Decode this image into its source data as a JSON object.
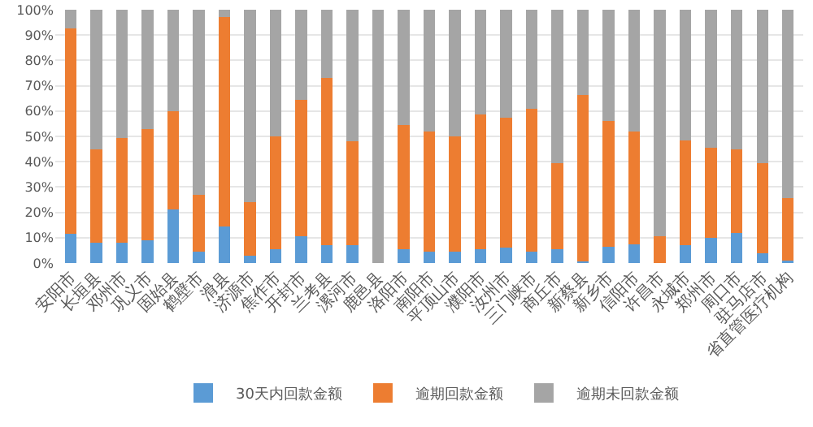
{
  "chart_data": {
    "type": "bar",
    "stacked": true,
    "categories": [
      "安阳市",
      "长垣县",
      "邓州市",
      "巩义市",
      "固始县",
      "鹤壁市",
      "滑县",
      "济源市",
      "焦作市",
      "开封市",
      "兰考县",
      "漯河市",
      "鹿邑县",
      "洛阳市",
      "南阳市",
      "平顶山市",
      "濮阳市",
      "汝州市",
      "三门峡市",
      "商丘市",
      "新蔡县",
      "新乡市",
      "信阳市",
      "许昌市",
      "永城市",
      "郑州市",
      "周口市",
      "驻马店市",
      "省直管医疗机构"
    ],
    "series": [
      {
        "name": "30天内回款金额",
        "color": "#5b9bd5",
        "values": [
          11.5,
          8,
          8,
          9,
          21,
          4.5,
          14.5,
          3,
          5.5,
          10.5,
          7,
          7,
          0,
          5.5,
          4.5,
          4.5,
          5.5,
          6,
          4.5,
          5.5,
          0.5,
          6.5,
          7.5,
          0,
          7,
          10,
          12,
          4,
          1
        ]
      },
      {
        "name": "逾期回款金额",
        "color": "#ed7d31",
        "values": [
          81,
          37,
          41.5,
          44,
          39,
          22.5,
          82.5,
          21,
          44.5,
          54,
          66,
          41,
          0,
          49,
          47.5,
          45.5,
          53,
          51.5,
          56.5,
          34,
          66,
          49.5,
          44.5,
          10.5,
          41.5,
          35.5,
          33,
          35.5,
          24.5
        ]
      },
      {
        "name": "逾期未回款金额",
        "color": "#a5a5a5",
        "values": [
          7.5,
          55,
          50.5,
          47,
          40,
          73,
          3,
          76,
          50,
          35.5,
          27,
          52,
          100,
          45.5,
          48,
          50,
          41.5,
          42.5,
          39,
          60.5,
          33.5,
          44,
          48,
          89.5,
          51.5,
          54.5,
          55,
          60.5,
          74.5
        ]
      }
    ],
    "ylim": [
      0,
      100
    ],
    "yticks": [
      {
        "value": 0,
        "label": "0%"
      },
      {
        "value": 10,
        "label": "10%"
      },
      {
        "value": 20,
        "label": "20%"
      },
      {
        "value": 30,
        "label": "30%"
      },
      {
        "value": 40,
        "label": "40%"
      },
      {
        "value": 50,
        "label": "50%"
      },
      {
        "value": 60,
        "label": "60%"
      },
      {
        "value": 70,
        "label": "70%"
      },
      {
        "value": 80,
        "label": "80%"
      },
      {
        "value": 90,
        "label": "90%"
      },
      {
        "value": 100,
        "label": "100%"
      }
    ],
    "grid": "y",
    "legend": "bottom"
  }
}
